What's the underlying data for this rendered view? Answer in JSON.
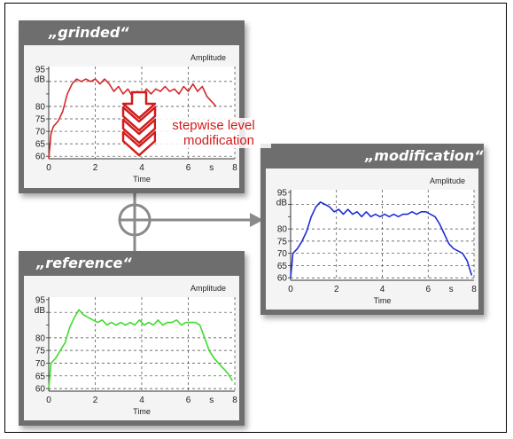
{
  "chart_data": [
    {
      "type": "line",
      "name_label": "„grinded“",
      "legend": "Amplitude",
      "xlabel": "Time",
      "x_unit": "s",
      "y_unit": "dB",
      "xlim": [
        0,
        8
      ],
      "ylim": [
        59,
        96
      ],
      "xticks": [
        0,
        2,
        4,
        6,
        8
      ],
      "yticks": [
        60,
        65,
        70,
        75,
        80,
        85,
        90,
        95
      ],
      "ytick_labels": [
        "60",
        "65",
        "70",
        "75",
        "80",
        "",
        "",
        "95"
      ],
      "grid": true,
      "color": "#d42a2a",
      "x": [
        0,
        0.1,
        0.2,
        0.4,
        0.6,
        0.8,
        1.0,
        1.2,
        1.4,
        1.6,
        1.8,
        2.0,
        2.2,
        2.4,
        2.6,
        2.8,
        3.0,
        3.2,
        3.4,
        3.6,
        3.8,
        4.0,
        4.2,
        4.4,
        4.6,
        4.8,
        5.0,
        5.2,
        5.4,
        5.6,
        5.8,
        6.0,
        6.2,
        6.4,
        6.6,
        6.8,
        7.0,
        7.2
      ],
      "y": [
        59,
        69,
        72,
        74,
        78,
        85,
        89,
        91,
        90,
        91,
        90,
        91,
        89,
        91,
        89,
        86,
        88,
        85,
        87,
        84,
        86,
        84,
        87,
        85,
        87,
        86,
        88,
        86,
        87,
        85,
        88,
        86,
        89,
        86,
        88,
        84,
        82,
        80
      ]
    },
    {
      "type": "line",
      "name_label": "„reference“",
      "legend": "Amplitude",
      "xlabel": "Time",
      "x_unit": "s",
      "y_unit": "dB",
      "xlim": [
        0,
        8
      ],
      "ylim": [
        59,
        96
      ],
      "xticks": [
        0,
        2,
        4,
        6,
        8
      ],
      "yticks": [
        60,
        65,
        70,
        75,
        80,
        85,
        90,
        95
      ],
      "ytick_labels": [
        "60",
        "65",
        "70",
        "75",
        "80",
        "",
        "",
        "95"
      ],
      "grid": true,
      "color": "#3fdc2e",
      "x": [
        0,
        0.1,
        0.3,
        0.5,
        0.7,
        0.9,
        1.1,
        1.3,
        1.5,
        1.7,
        1.9,
        2.1,
        2.3,
        2.5,
        2.7,
        2.9,
        3.1,
        3.3,
        3.5,
        3.7,
        3.9,
        4.1,
        4.3,
        4.5,
        4.7,
        4.9,
        5.1,
        5.3,
        5.5,
        5.7,
        5.9,
        6.1,
        6.3,
        6.5,
        6.7,
        6.9,
        7.1,
        7.3,
        7.5,
        7.7,
        7.9
      ],
      "y": [
        60,
        70,
        72,
        75,
        78,
        84,
        88,
        91,
        89,
        88,
        87,
        86,
        87,
        85,
        86,
        85,
        86,
        85,
        86,
        85,
        87,
        85,
        86,
        85,
        87,
        85,
        86,
        86,
        87,
        85,
        86,
        86,
        86,
        85,
        80,
        75,
        72,
        70,
        68,
        66,
        63
      ]
    },
    {
      "type": "line",
      "name_label": "„modification“",
      "legend": "Amplitude",
      "xlabel": "Time",
      "x_unit": "s",
      "y_unit": "dB",
      "xlim": [
        0,
        8
      ],
      "ylim": [
        59,
        96
      ],
      "xticks": [
        0,
        2,
        4,
        6,
        8
      ],
      "yticks": [
        60,
        65,
        70,
        75,
        80,
        85,
        90,
        95
      ],
      "ytick_labels": [
        "60",
        "65",
        "70",
        "75",
        "80",
        "",
        "",
        "95"
      ],
      "grid": true,
      "color": "#1f2ed6",
      "x": [
        0,
        0.1,
        0.3,
        0.5,
        0.7,
        0.9,
        1.1,
        1.3,
        1.5,
        1.7,
        1.9,
        2.1,
        2.3,
        2.5,
        2.7,
        2.9,
        3.1,
        3.3,
        3.5,
        3.7,
        3.9,
        4.1,
        4.3,
        4.5,
        4.7,
        4.9,
        5.1,
        5.3,
        5.5,
        5.7,
        5.9,
        6.1,
        6.3,
        6.5,
        6.7,
        6.9,
        7.1,
        7.3,
        7.5,
        7.7,
        7.9
      ],
      "y": [
        60,
        70,
        72,
        75,
        79,
        85,
        89,
        91,
        90,
        89,
        87,
        88,
        86,
        88,
        86,
        87,
        85,
        87,
        85,
        86,
        85,
        86,
        85,
        86,
        85,
        86,
        86,
        87,
        86,
        87,
        87,
        86,
        85,
        82,
        78,
        74,
        72,
        71,
        70,
        67,
        61
      ]
    }
  ],
  "annotation": {
    "line1": "stepwise level",
    "line2": "modification"
  },
  "colors": {
    "panel_gray": "#6e6e6e",
    "connector_gray": "#8a8a8a",
    "arrow_red": "#d21b1b"
  }
}
